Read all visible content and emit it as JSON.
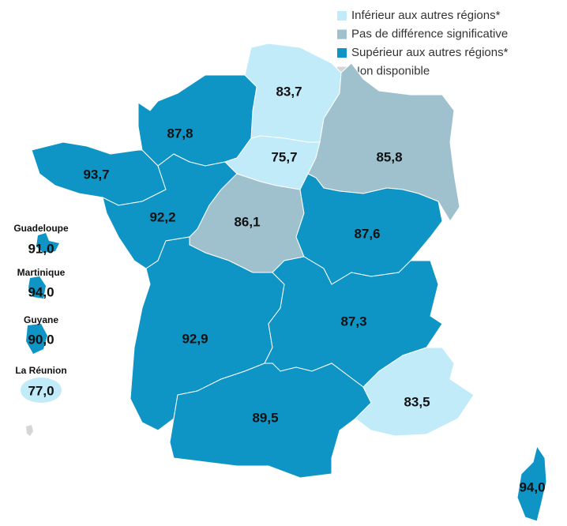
{
  "legend": [
    {
      "label": "Inférieur aux autres régions*",
      "color": "#c2ebfa"
    },
    {
      "label": "Pas de différence significative",
      "color": "#9fc1ce"
    },
    {
      "label": "Supérieur aux autres régions*",
      "color": "#0f95c5"
    },
    {
      "label": "Non disponible",
      "color": "#d6d6d6"
    }
  ],
  "regions": [
    {
      "value": "83,7",
      "category": 0
    },
    {
      "value": "87,8",
      "category": 2
    },
    {
      "value": "75,7",
      "category": 0
    },
    {
      "value": "85,8",
      "category": 1
    },
    {
      "value": "93,7",
      "category": 2
    },
    {
      "value": "92,2",
      "category": 2
    },
    {
      "value": "86,1",
      "category": 1
    },
    {
      "value": "87,6",
      "category": 2
    },
    {
      "value": "92,9",
      "category": 2
    },
    {
      "value": "87,3",
      "category": 2
    },
    {
      "value": "89,5",
      "category": 2
    },
    {
      "value": "83,5",
      "category": 0
    },
    {
      "value": "94,0",
      "category": 2
    }
  ],
  "overseas": [
    {
      "name": "Guadeloupe",
      "value": "91,0",
      "category": 2
    },
    {
      "name": "Martinique",
      "value": "94,0",
      "category": 2
    },
    {
      "name": "Guyane",
      "value": "90,0",
      "category": 2
    },
    {
      "name": "La Réunion",
      "value": "77,0",
      "category": 0
    },
    {
      "category": 3
    }
  ]
}
